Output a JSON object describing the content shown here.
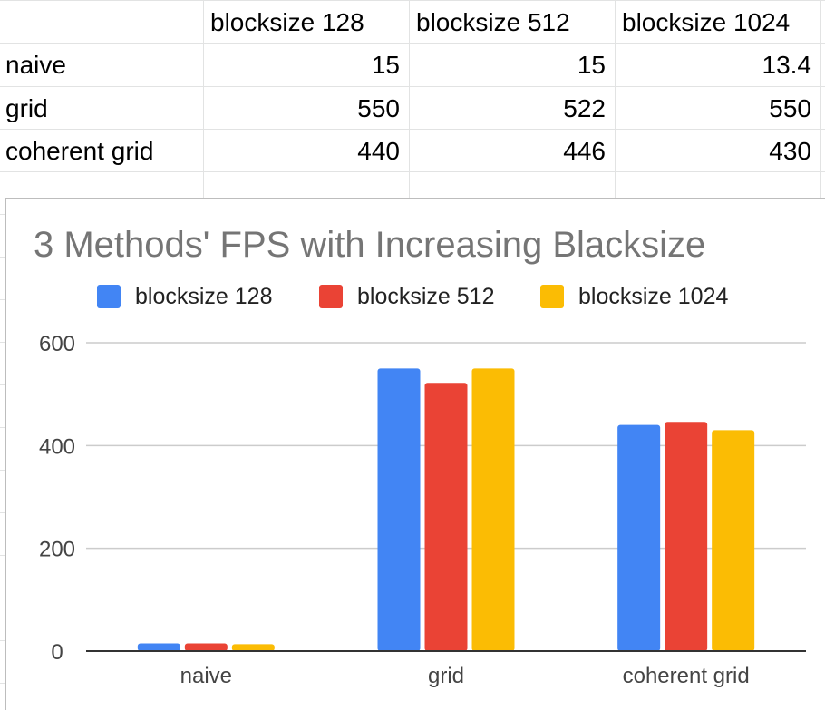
{
  "sheet": {
    "headers": [
      "",
      "blocksize 128",
      "blocksize 512",
      "blocksize 1024"
    ],
    "rows": [
      {
        "label": "naive",
        "values": [
          "15",
          "15",
          "13.4"
        ]
      },
      {
        "label": "grid",
        "values": [
          "550",
          "522",
          "550"
        ]
      },
      {
        "label": "coherent grid",
        "values": [
          "440",
          "446",
          "430"
        ]
      }
    ]
  },
  "chart_data": {
    "type": "bar",
    "title": "3 Methods' FPS with Increasing Blacksize",
    "categories": [
      "naive",
      "grid",
      "coherent grid"
    ],
    "series": [
      {
        "name": "blocksize 128",
        "values": [
          15,
          550,
          440
        ],
        "color": "#4285f4"
      },
      {
        "name": "blocksize 512",
        "values": [
          15,
          522,
          446
        ],
        "color": "#ea4335"
      },
      {
        "name": "blocksize 1024",
        "values": [
          13.4,
          550,
          430
        ],
        "color": "#fbbc04"
      }
    ],
    "ylim": [
      0,
      600
    ],
    "yticks": [
      0,
      200,
      400,
      600
    ],
    "ytick_labels": [
      "0",
      "200",
      "400",
      "600"
    ],
    "xlabel": "",
    "ylabel": "",
    "legend_position": "top",
    "grid": true
  }
}
